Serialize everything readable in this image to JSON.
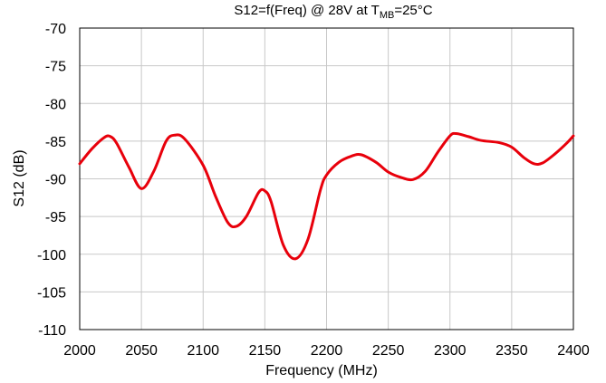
{
  "chart_data": {
    "type": "line",
    "title": "S12=f(Freq) @ 28V at T",
    "title_sub": "MB",
    "title_suffix": "=25°C",
    "xlabel": "Frequency (MHz)",
    "ylabel": "S12 (dB)",
    "xlim": [
      2000,
      2400
    ],
    "ylim": [
      -110,
      -70
    ],
    "xticks": [
      2000,
      2050,
      2100,
      2150,
      2200,
      2250,
      2300,
      2350,
      2400
    ],
    "yticks": [
      -70,
      -75,
      -80,
      -85,
      -90,
      -95,
      -100,
      -105,
      -110
    ],
    "grid": true,
    "series_color": "#e8000b",
    "series": [
      {
        "x": [
          2000,
          2010,
          2020,
          2025,
          2030,
          2040,
          2050,
          2060,
          2070,
          2077,
          2085,
          2100,
          2110,
          2120,
          2127,
          2135,
          2145,
          2150,
          2155,
          2165,
          2175,
          2185,
          2195,
          2200,
          2210,
          2220,
          2228,
          2240,
          2250,
          2260,
          2270,
          2280,
          2290,
          2300,
          2305,
          2315,
          2325,
          2340,
          2350,
          2360,
          2368,
          2375,
          2385,
          2395,
          2400
        ],
        "y": [
          -88.0,
          -86.0,
          -84.5,
          -84.4,
          -85.3,
          -88.5,
          -91.3,
          -89.0,
          -85.0,
          -84.2,
          -84.7,
          -88.2,
          -92.3,
          -95.8,
          -96.3,
          -95.0,
          -91.8,
          -91.6,
          -93.0,
          -98.8,
          -100.6,
          -98.0,
          -91.5,
          -89.5,
          -87.8,
          -87.0,
          -86.8,
          -87.8,
          -89.1,
          -89.8,
          -90.1,
          -89.0,
          -86.5,
          -84.3,
          -84.0,
          -84.4,
          -84.9,
          -85.2,
          -85.8,
          -87.2,
          -88.0,
          -87.9,
          -86.7,
          -85.2,
          -84.3
        ]
      }
    ]
  }
}
